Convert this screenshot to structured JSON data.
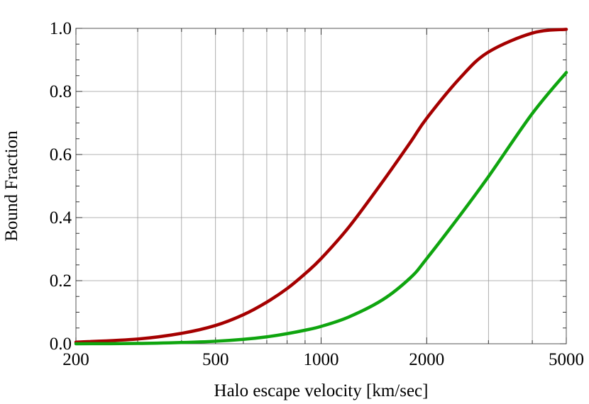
{
  "chart_data": {
    "type": "line",
    "xscale": "log",
    "xlim": [
      200,
      5000
    ],
    "ylim": [
      0,
      1
    ],
    "xlabel": "Halo escape velocity [km/sec]",
    "ylabel": "Bound Fraction",
    "x_tick_labels": [
      "200",
      "500",
      "1000",
      "2000",
      "5000"
    ],
    "x_ticks": [
      200,
      500,
      1000,
      2000,
      5000
    ],
    "x_gridlines": [
      200,
      300,
      400,
      500,
      600,
      700,
      800,
      900,
      1000,
      2000,
      3000,
      4000,
      5000
    ],
    "y_tick_labels": [
      "0.0",
      "0.2",
      "0.4",
      "0.6",
      "0.8",
      "1.0"
    ],
    "y_ticks": [
      0,
      0.2,
      0.4,
      0.6,
      0.8,
      1.0
    ],
    "grid": true,
    "legend": "none",
    "series": [
      {
        "color": "#a50000",
        "x": [
          200,
          300,
          400,
          500,
          600,
          700,
          800,
          900,
          1000,
          1200,
          1500,
          1800,
          2000,
          2500,
          3000,
          4000,
          5000
        ],
        "y": [
          0.005,
          0.015,
          0.033,
          0.058,
          0.092,
          0.132,
          0.175,
          0.222,
          0.27,
          0.37,
          0.515,
          0.64,
          0.715,
          0.845,
          0.925,
          0.985,
          0.997
        ]
      },
      {
        "color": "#0fa50f",
        "x": [
          200,
          300,
          400,
          500,
          600,
          700,
          800,
          900,
          1000,
          1200,
          1500,
          1800,
          2000,
          2500,
          3000,
          4000,
          5000
        ],
        "y": [
          0.0,
          0.001,
          0.004,
          0.008,
          0.014,
          0.022,
          0.032,
          0.043,
          0.055,
          0.085,
          0.14,
          0.21,
          0.27,
          0.41,
          0.53,
          0.73,
          0.86
        ]
      }
    ]
  }
}
